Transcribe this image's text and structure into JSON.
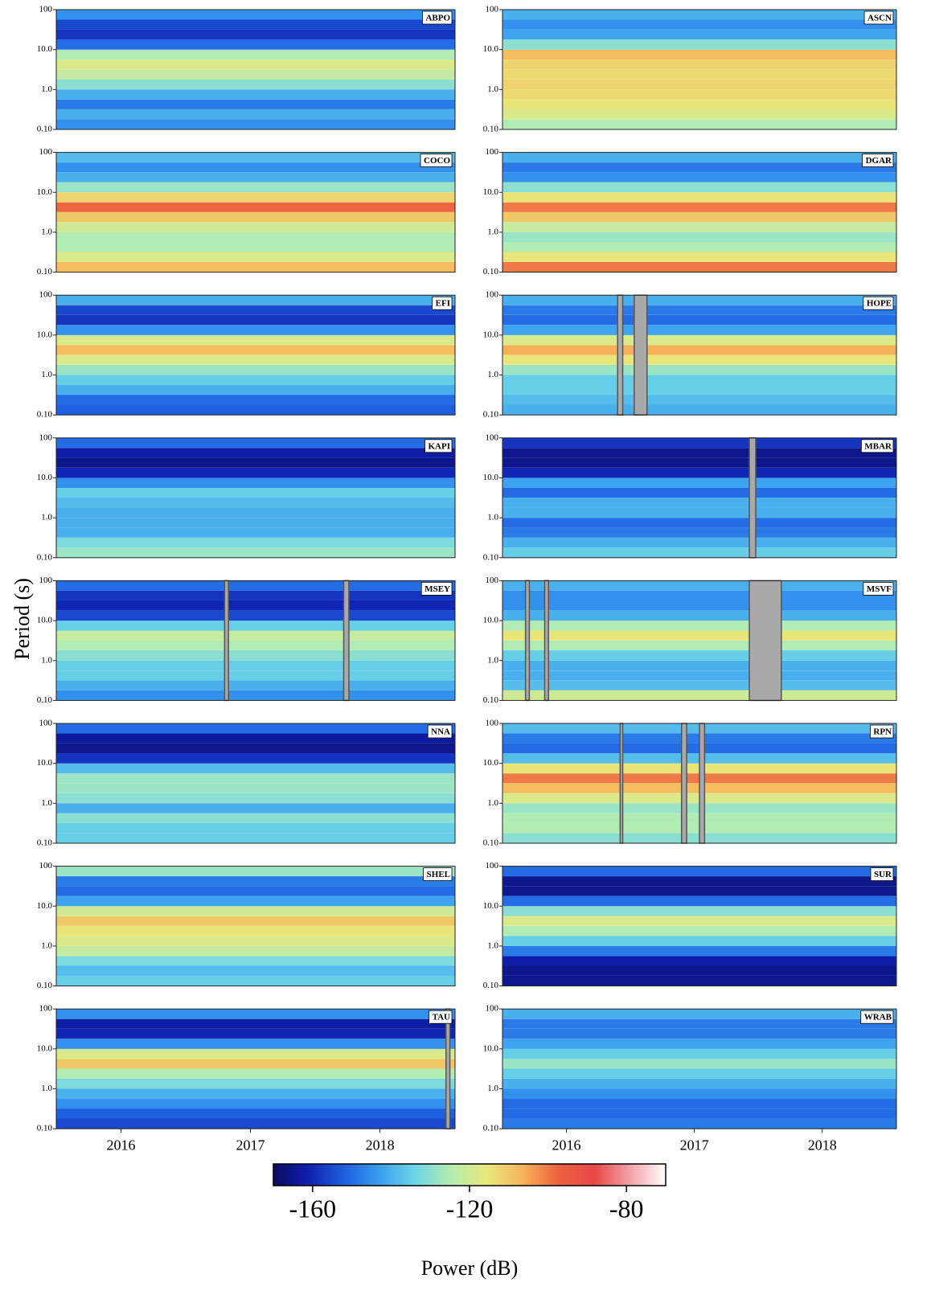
{
  "ylabel": "Period (s)",
  "chart_data": [
    {
      "type": "heatmap",
      "title": "ABPO",
      "xlim": [
        2015.5,
        2018.58
      ],
      "ylim": [
        0.1,
        100
      ],
      "log_y": true,
      "yticks": [
        {
          "value": 0.1,
          "label": "0.10"
        },
        {
          "value": 1,
          "label": "1.0"
        },
        {
          "value": 10,
          "label": "10.0"
        },
        100
      ],
      "ybins": [
        0.1,
        0.18,
        0.32,
        0.56,
        1,
        1.8,
        3.2,
        5.6,
        10,
        18,
        32,
        56,
        100
      ],
      "values": [
        -145,
        -140,
        -148,
        -140,
        -130,
        -122,
        -118,
        -125,
        -150,
        -158,
        -155,
        -145
      ],
      "gaps": []
    },
    {
      "type": "heatmap",
      "title": "ASCN",
      "xlim": [
        2015.5,
        2018.58
      ],
      "ylim": [
        0.1,
        100
      ],
      "log_y": true,
      "yticks": [
        {
          "value": 0.1,
          "label": "0.10"
        },
        {
          "value": 1,
          "label": "1.0"
        },
        {
          "value": 10,
          "label": "10.0"
        },
        100
      ],
      "ybins": [
        0.1,
        0.18,
        0.32,
        0.56,
        1,
        1.8,
        3.2,
        5.6,
        10,
        18,
        32,
        56,
        100
      ],
      "values": [
        -125,
        -118,
        -115,
        -113,
        -112,
        -113,
        -112,
        -108,
        -130,
        -142,
        -145,
        -140
      ],
      "gaps": []
    },
    {
      "type": "heatmap",
      "title": "COCO",
      "xlim": [
        2015.5,
        2018.58
      ],
      "ylim": [
        0.1,
        100
      ],
      "log_y": true,
      "yticks": [
        {
          "value": 0.1,
          "label": "0.10"
        },
        {
          "value": 1,
          "label": "1.0"
        },
        {
          "value": 10,
          "label": "10.0"
        },
        100
      ],
      "ybins": [
        0.1,
        0.18,
        0.32,
        0.56,
        1,
        1.8,
        3.2,
        5.6,
        10,
        18,
        32,
        56,
        100
      ],
      "values": [
        -108,
        -118,
        -125,
        -125,
        -120,
        -110,
        -98,
        -112,
        -128,
        -140,
        -145,
        -138
      ],
      "gaps": []
    },
    {
      "type": "heatmap",
      "title": "DGAR",
      "xlim": [
        2015.5,
        2018.58
      ],
      "ylim": [
        0.1,
        100
      ],
      "log_y": true,
      "yticks": [
        {
          "value": 0.1,
          "label": "0.10"
        },
        {
          "value": 1,
          "label": "1.0"
        },
        {
          "value": 10,
          "label": "10.0"
        },
        100
      ],
      "ybins": [
        0.1,
        0.18,
        0.32,
        0.56,
        1,
        1.8,
        3.2,
        5.6,
        10,
        18,
        32,
        56,
        100
      ],
      "values": [
        -100,
        -115,
        -125,
        -128,
        -122,
        -110,
        -100,
        -115,
        -130,
        -145,
        -148,
        -140
      ],
      "gaps": []
    },
    {
      "type": "heatmap",
      "title": "EFI",
      "xlim": [
        2015.5,
        2018.58
      ],
      "ylim": [
        0.1,
        100
      ],
      "log_y": true,
      "yticks": [
        {
          "value": 0.1,
          "label": "0.10"
        },
        {
          "value": 1,
          "label": "1.0"
        },
        {
          "value": 10,
          "label": "10.0"
        },
        100
      ],
      "ybins": [
        0.1,
        0.18,
        0.32,
        0.56,
        1,
        1.8,
        3.2,
        5.6,
        10,
        18,
        32,
        56,
        100
      ],
      "values": [
        -152,
        -150,
        -140,
        -135,
        -128,
        -118,
        -108,
        -118,
        -145,
        -158,
        -155,
        -140
      ],
      "gaps": []
    },
    {
      "type": "heatmap",
      "title": "HOPE",
      "xlim": [
        2015.5,
        2018.58
      ],
      "ylim": [
        0.1,
        100
      ],
      "log_y": true,
      "yticks": [
        {
          "value": 0.1,
          "label": "0.10"
        },
        {
          "value": 1,
          "label": "1.0"
        },
        {
          "value": 10,
          "label": "10.0"
        },
        100
      ],
      "ybins": [
        0.1,
        0.18,
        0.32,
        0.56,
        1,
        1.8,
        3.2,
        5.6,
        10,
        18,
        32,
        56,
        100
      ],
      "values": [
        -140,
        -138,
        -135,
        -135,
        -128,
        -115,
        -106,
        -118,
        -142,
        -150,
        -148,
        -140
      ],
      "gaps": [
        [
          2016.4,
          2016.44
        ],
        [
          2016.53,
          2016.63
        ]
      ]
    },
    {
      "type": "heatmap",
      "title": "KAPI",
      "xlim": [
        2015.5,
        2018.58
      ],
      "ylim": [
        0.1,
        100
      ],
      "log_y": true,
      "yticks": [
        {
          "value": 0.1,
          "label": "0.10"
        },
        {
          "value": 1,
          "label": "1.0"
        },
        {
          "value": 10,
          "label": "10.0"
        },
        100
      ],
      "ybins": [
        0.1,
        0.18,
        0.32,
        0.56,
        1,
        1.8,
        3.2,
        5.6,
        10,
        18,
        32,
        56,
        100
      ],
      "values": [
        -128,
        -132,
        -140,
        -140,
        -140,
        -138,
        -135,
        -145,
        -160,
        -165,
        -162,
        -150
      ],
      "gaps": []
    },
    {
      "type": "heatmap",
      "title": "MBAR",
      "xlim": [
        2015.5,
        2018.58
      ],
      "ylim": [
        0.1,
        100
      ],
      "log_y": true,
      "yticks": [
        {
          "value": 0.1,
          "label": "0.10"
        },
        {
          "value": 1,
          "label": "1.0"
        },
        {
          "value": 10,
          "label": "10.0"
        },
        100
      ],
      "ybins": [
        0.1,
        0.18,
        0.32,
        0.56,
        1,
        1.8,
        3.2,
        5.6,
        10,
        18,
        32,
        56,
        100
      ],
      "values": [
        -135,
        -140,
        -148,
        -150,
        -140,
        -140,
        -150,
        -142,
        -160,
        -165,
        -165,
        -158
      ],
      "gaps": [
        [
          2017.43,
          2017.48
        ]
      ]
    },
    {
      "type": "heatmap",
      "title": "MSEY",
      "xlim": [
        2015.5,
        2018.58
      ],
      "ylim": [
        0.1,
        100
      ],
      "log_y": true,
      "yticks": [
        {
          "value": 0.1,
          "label": "0.10"
        },
        {
          "value": 1,
          "label": "1.0"
        },
        {
          "value": 10,
          "label": "10.0"
        },
        100
      ],
      "ybins": [
        0.1,
        0.18,
        0.32,
        0.56,
        1,
        1.8,
        3.2,
        5.6,
        10,
        18,
        32,
        56,
        100
      ],
      "values": [
        -145,
        -140,
        -135,
        -135,
        -130,
        -125,
        -122,
        -135,
        -155,
        -160,
        -158,
        -150
      ],
      "gaps": [
        [
          2016.8,
          2016.83
        ],
        [
          2017.72,
          2017.76
        ]
      ]
    },
    {
      "type": "heatmap",
      "title": "MSVF",
      "xlim": [
        2015.5,
        2018.58
      ],
      "ylim": [
        0.1,
        100
      ],
      "log_y": true,
      "yticks": [
        {
          "value": 0.1,
          "label": "0.10"
        },
        {
          "value": 1,
          "label": "1.0"
        },
        {
          "value": 10,
          "label": "10.0"
        },
        100
      ],
      "ybins": [
        0.1,
        0.18,
        0.32,
        0.56,
        1,
        1.8,
        3.2,
        5.6,
        10,
        18,
        32,
        56,
        100
      ],
      "values": [
        -120,
        -138,
        -140,
        -140,
        -135,
        -125,
        -115,
        -125,
        -140,
        -145,
        -145,
        -140
      ],
      "gaps": [
        [
          2015.68,
          2015.71
        ],
        [
          2015.83,
          2015.86
        ],
        [
          2017.43,
          2017.68
        ]
      ]
    },
    {
      "type": "heatmap",
      "title": "NNA",
      "xlim": [
        2015.5,
        2018.58
      ],
      "ylim": [
        0.1,
        100
      ],
      "log_y": true,
      "yticks": [
        {
          "value": 0.1,
          "label": "0.10"
        },
        {
          "value": 1,
          "label": "1.0"
        },
        {
          "value": 10,
          "label": "10.0"
        },
        100
      ],
      "ybins": [
        0.1,
        0.18,
        0.32,
        0.56,
        1,
        1.8,
        3.2,
        5.6,
        10,
        18,
        32,
        56,
        100
      ],
      "values": [
        -135,
        -135,
        -130,
        -140,
        -130,
        -128,
        -128,
        -138,
        -158,
        -165,
        -163,
        -150
      ],
      "gaps": []
    },
    {
      "type": "heatmap",
      "title": "RPN",
      "xlim": [
        2015.5,
        2018.58
      ],
      "ylim": [
        0.1,
        100
      ],
      "log_y": true,
      "yticks": [
        {
          "value": 0.1,
          "label": "0.10"
        },
        {
          "value": 1,
          "label": "1.0"
        },
        {
          "value": 10,
          "label": "10.0"
        },
        100
      ],
      "ybins": [
        0.1,
        0.18,
        0.32,
        0.56,
        1,
        1.8,
        3.2,
        5.6,
        10,
        18,
        32,
        56,
        100
      ],
      "values": [
        -130,
        -125,
        -125,
        -128,
        -118,
        -108,
        -100,
        -115,
        -138,
        -150,
        -148,
        -138
      ],
      "gaps": [
        [
          2016.42,
          2016.44
        ],
        [
          2016.9,
          2016.94
        ],
        [
          2017.04,
          2017.08
        ]
      ]
    },
    {
      "type": "heatmap",
      "title": "SHEL",
      "xlim": [
        2015.5,
        2018.58
      ],
      "ylim": [
        0.1,
        100
      ],
      "log_y": true,
      "yticks": [
        {
          "value": 0.1,
          "label": "0.10"
        },
        {
          "value": 1,
          "label": "1.0"
        },
        {
          "value": 10,
          "label": "10.0"
        },
        100
      ],
      "ybins": [
        0.1,
        0.18,
        0.32,
        0.56,
        1,
        1.8,
        3.2,
        5.6,
        10,
        18,
        32,
        56,
        100
      ],
      "values": [
        -135,
        -138,
        -132,
        -122,
        -118,
        -115,
        -110,
        -120,
        -142,
        -150,
        -148,
        -128
      ],
      "gaps": []
    },
    {
      "type": "heatmap",
      "title": "SUR",
      "xlim": [
        2015.5,
        2018.58
      ],
      "ylim": [
        0.1,
        100
      ],
      "log_y": true,
      "yticks": [
        {
          "value": 0.1,
          "label": "0.10"
        },
        {
          "value": 1,
          "label": "1.0"
        },
        {
          "value": 10,
          "label": "10.0"
        },
        100
      ],
      "ybins": [
        0.1,
        0.18,
        0.32,
        0.56,
        1,
        1.8,
        3.2,
        5.6,
        10,
        18,
        32,
        56,
        100
      ],
      "values": [
        -165,
        -165,
        -162,
        -148,
        -135,
        -125,
        -118,
        -130,
        -150,
        -165,
        -165,
        -150
      ],
      "gaps": []
    },
    {
      "type": "heatmap",
      "title": "TAU",
      "xlim": [
        2015.5,
        2018.58
      ],
      "ylim": [
        0.1,
        100
      ],
      "log_y": true,
      "yticks": [
        {
          "value": 0.1,
          "label": "0.10"
        },
        {
          "value": 1,
          "label": "1.0"
        },
        {
          "value": 10,
          "label": "10.0"
        },
        100
      ],
      "xticks": [
        2016,
        2017,
        2018
      ],
      "ybins": [
        0.1,
        0.18,
        0.32,
        0.56,
        1,
        1.8,
        3.2,
        5.6,
        10,
        18,
        32,
        56,
        100
      ],
      "values": [
        -155,
        -152,
        -145,
        -140,
        -132,
        -125,
        -110,
        -118,
        -145,
        -160,
        -162,
        -145
      ],
      "gaps": [
        [
          2018.51,
          2018.54
        ]
      ]
    },
    {
      "type": "heatmap",
      "title": "WRAB",
      "xlim": [
        2015.5,
        2018.58
      ],
      "ylim": [
        0.1,
        100
      ],
      "log_y": true,
      "yticks": [
        {
          "value": 0.1,
          "label": "0.10"
        },
        {
          "value": 1,
          "label": "1.0"
        },
        {
          "value": 10,
          "label": "10.0"
        },
        100
      ],
      "xticks": [
        2016,
        2017,
        2018
      ],
      "ybins": [
        0.1,
        0.18,
        0.32,
        0.56,
        1,
        1.8,
        3.2,
        5.6,
        10,
        18,
        32,
        56,
        100
      ],
      "values": [
        -148,
        -150,
        -150,
        -145,
        -140,
        -135,
        -128,
        -135,
        -142,
        -148,
        -148,
        -140
      ],
      "gaps": []
    }
  ],
  "gap_color": "#a9a9a9",
  "colorbar": {
    "type": "colorbar",
    "label": "Power (dB)",
    "lim": [
      -170,
      -70
    ],
    "ticks": [
      -160,
      -120,
      -80
    ],
    "colormap": [
      "#0b0b60",
      "#1020b0",
      "#1f5fe0",
      "#3aa0f0",
      "#6fd6e6",
      "#b6ecb0",
      "#e8e87a",
      "#f6b35a",
      "#ee6040",
      "#e84848",
      "#f3a0a8",
      "#ffffff"
    ]
  }
}
